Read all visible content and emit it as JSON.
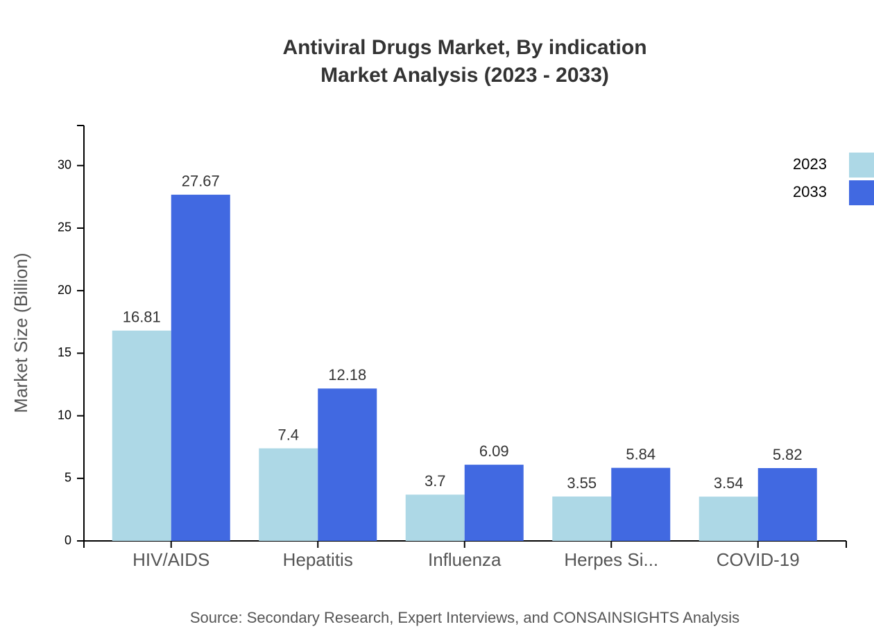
{
  "chart_data": {
    "type": "bar",
    "title": "Antiviral Drugs Market, By indication",
    "subtitle": "Market Analysis (2023 - 2033)",
    "y_label": "Market Size (Billion)",
    "source": "Source: Secondary Research, Expert Interviews, and CONSAINSIGHTS Analysis",
    "categories": [
      "HIV/AIDS",
      "Hepatitis",
      "Influenza",
      "Herpes Si...",
      "COVID-19"
    ],
    "series": [
      {
        "name": "2023",
        "color": "#add8e6",
        "values": [
          16.81,
          7.4,
          3.7,
          3.55,
          3.54
        ]
      },
      {
        "name": "2033",
        "color": "#4169e1",
        "values": [
          27.67,
          12.18,
          6.09,
          5.84,
          5.82
        ]
      }
    ],
    "ylim": [
      0,
      33.2
    ],
    "yticks": [
      0,
      5,
      10,
      15,
      20,
      25,
      30
    ],
    "grid": false,
    "legend": "top-right"
  }
}
